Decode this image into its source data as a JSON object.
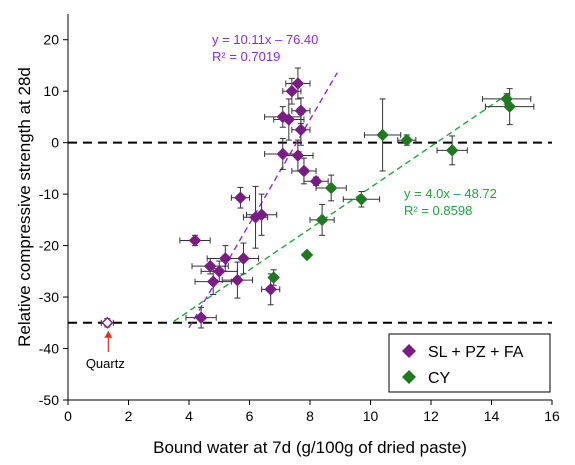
{
  "chart_data": {
    "type": "scatter",
    "xlabel": "Bound water at 7d (g/100g of dried paste)",
    "ylabel": "Relative compressive strength at 28d",
    "xlim": [
      0,
      16
    ],
    "ylim": [
      -50,
      25
    ],
    "xticks": [
      0,
      2,
      4,
      6,
      8,
      10,
      12,
      14,
      16
    ],
    "yticks": [
      -50,
      -40,
      -30,
      -20,
      -10,
      0,
      10,
      20
    ],
    "grid": false,
    "legend_position": "bottom-right",
    "reference_lines": [
      0,
      -35
    ],
    "series": [
      {
        "name": "SL + PZ + FA",
        "color": "#7b1b86",
        "points": [
          {
            "x": 1.3,
            "y": -35.0,
            "xerr": 0.2,
            "yerr": 0.8,
            "hollow": true
          },
          {
            "x": 4.2,
            "y": -19.0,
            "xerr": 0.5,
            "yerr": 1.0
          },
          {
            "x": 4.4,
            "y": -34.0,
            "xerr": 0.5,
            "yerr": 2.0
          },
          {
            "x": 4.7,
            "y": -24.0,
            "xerr": 0.6,
            "yerr": 1.5
          },
          {
            "x": 4.8,
            "y": -27.0,
            "xerr": 0.6,
            "yerr": 2.5
          },
          {
            "x": 5.0,
            "y": -25.0,
            "xerr": 0.6,
            "yerr": 2.0
          },
          {
            "x": 5.2,
            "y": -22.5,
            "xerr": 0.6,
            "yerr": 2.5
          },
          {
            "x": 5.6,
            "y": -26.7,
            "xerr": 0.5,
            "yerr": 3.5
          },
          {
            "x": 5.7,
            "y": -10.7,
            "xerr": 0.3,
            "yerr": 2.0
          },
          {
            "x": 5.8,
            "y": -22.5,
            "xerr": 0.5,
            "yerr": 3.0
          },
          {
            "x": 6.2,
            "y": -14.5,
            "xerr": 0.4,
            "yerr": 6.0
          },
          {
            "x": 6.4,
            "y": -14.0,
            "xerr": 0.5,
            "yerr": 4.0
          },
          {
            "x": 6.7,
            "y": -28.5,
            "xerr": 0.3,
            "yerr": 3.0
          },
          {
            "x": 7.1,
            "y": -2.2,
            "xerr": 0.6,
            "yerr": 3.0
          },
          {
            "x": 7.1,
            "y": 5.0,
            "xerr": 0.6,
            "yerr": 2.0
          },
          {
            "x": 7.3,
            "y": 4.5,
            "xerr": 0.5,
            "yerr": 4.0
          },
          {
            "x": 7.4,
            "y": 10.0,
            "xerr": 0.3,
            "yerr": 2.5
          },
          {
            "x": 7.6,
            "y": -2.5,
            "xerr": 0.5,
            "yerr": 3.0
          },
          {
            "x": 7.6,
            "y": 11.5,
            "xerr": 0.4,
            "yerr": 3.0
          },
          {
            "x": 7.7,
            "y": 6.2,
            "xerr": 0.3,
            "yerr": 2.5
          },
          {
            "x": 7.7,
            "y": 2.5,
            "xerr": 0.3,
            "yerr": 3.0
          },
          {
            "x": 7.8,
            "y": -5.5,
            "xerr": 0.4,
            "yerr": 2.5
          },
          {
            "x": 8.2,
            "y": -7.5,
            "xerr": 0.4,
            "yerr": 0.8
          }
        ]
      },
      {
        "name": "CY",
        "color": "#1e7a1e",
        "points": [
          {
            "x": 6.8,
            "y": -26.2,
            "xerr": 0.0,
            "yerr": 1.5
          },
          {
            "x": 7.9,
            "y": -21.8,
            "xerr": 0.0,
            "yerr": 0.6
          },
          {
            "x": 8.4,
            "y": -15.0,
            "xerr": 0.4,
            "yerr": 3.0
          },
          {
            "x": 8.7,
            "y": -8.8,
            "xerr": 0.5,
            "yerr": 2.5
          },
          {
            "x": 9.7,
            "y": -11.0,
            "xerr": 0.6,
            "yerr": 1.5
          },
          {
            "x": 10.4,
            "y": 1.5,
            "xerr": 0.6,
            "yerr": 7.0
          },
          {
            "x": 11.2,
            "y": 0.5,
            "xerr": 0.3,
            "yerr": 1.0
          },
          {
            "x": 12.7,
            "y": -1.5,
            "xerr": 0.5,
            "yerr": 2.8
          },
          {
            "x": 14.5,
            "y": 8.5,
            "xerr": 0.8,
            "yerr": 1.0
          },
          {
            "x": 14.6,
            "y": 7.0,
            "xerr": 0.8,
            "yerr": 3.5
          }
        ]
      }
    ],
    "fits": [
      {
        "series": "SL + PZ + FA",
        "slope": 10.11,
        "intercept": -76.4,
        "x_range": [
          4.0,
          8.9
        ],
        "equation": "y = 10.11x – 76.40",
        "r2": "R² = 0.7019",
        "color": "#8a2be2"
      },
      {
        "series": "CY",
        "slope": 4.0,
        "intercept": -48.72,
        "x_range": [
          3.5,
          14.6
        ],
        "equation": "y = 4.0x – 48.72",
        "r2": "R² = 0.8598",
        "color": "#1aa83a"
      }
    ],
    "annotations": [
      {
        "text": "Quartz",
        "x": 1.3,
        "y": -35.0
      }
    ]
  }
}
